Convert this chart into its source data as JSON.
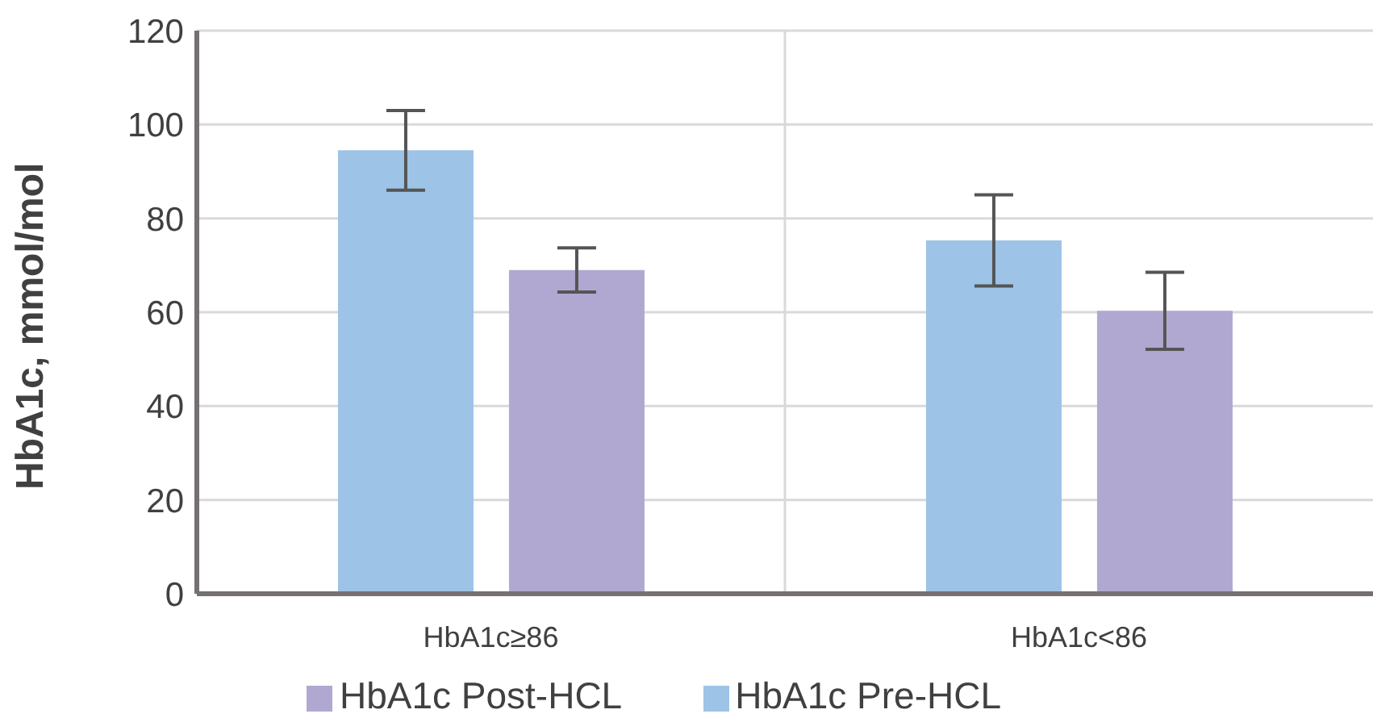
{
  "chart_data": {
    "type": "bar",
    "ylabel": "HbA1c, mmol/mol",
    "categories": [
      "HbA1c≥86",
      "HbA1c<86"
    ],
    "series": [
      {
        "name": "HbA1c Pre-HCL",
        "color": "#9dc3e6",
        "values": [
          94.5,
          75.3
        ],
        "errors": [
          8.5,
          9.7
        ]
      },
      {
        "name": "HbA1c Post-HCL",
        "color": "#b1a8d1",
        "values": [
          69.0,
          60.3
        ],
        "errors": [
          4.7,
          8.2
        ]
      }
    ],
    "ylim": [
      0,
      120
    ],
    "yticks": [
      0,
      20,
      40,
      60,
      80,
      100,
      120
    ],
    "grid": true,
    "legend": "bottom"
  }
}
